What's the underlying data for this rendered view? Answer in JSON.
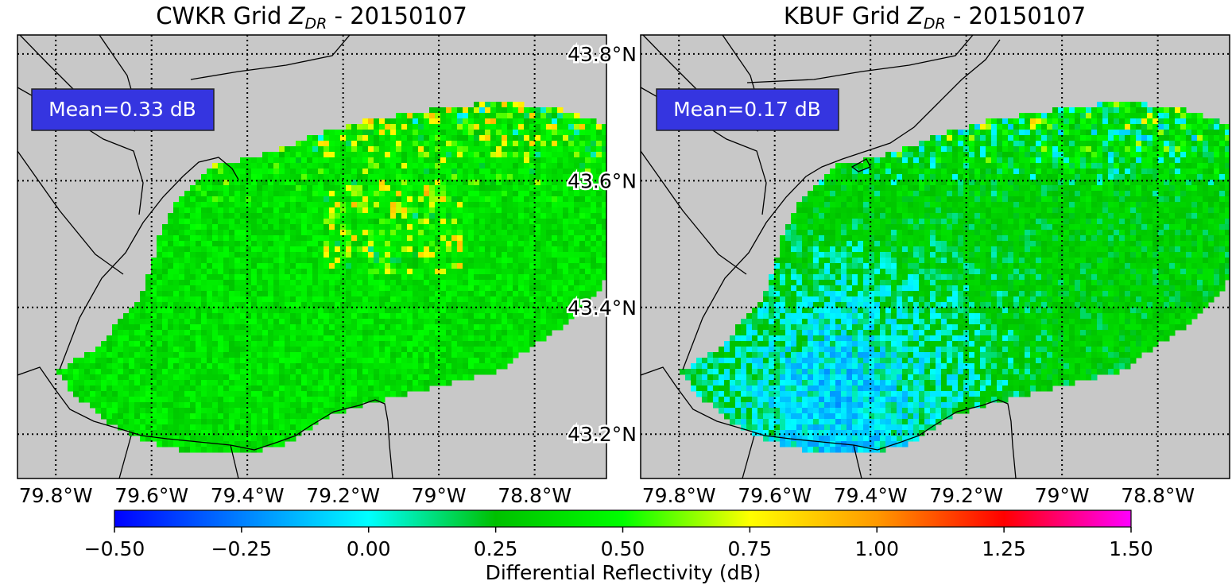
{
  "colors": {
    "land": "#c8c8c8",
    "annotation_box": "#3535e0",
    "annotation_text": "#ffffff",
    "colormap": [
      "#0000ff",
      "#00ffff",
      "#00c000",
      "#00ff00",
      "#ffff00",
      "#ff9900",
      "#ff0000",
      "#ff00ff"
    ]
  },
  "chart_data": [
    {
      "type": "heatmap",
      "title_prefix": "CWKR Grid ",
      "title_var": "Z",
      "title_sub": "DR",
      "title_suffix": " - 20150107",
      "annotation": "Mean=0.33 dB",
      "mean_dB": 0.33,
      "lon_range": [
        -79.88,
        -78.65
      ],
      "lat_range": [
        43.13,
        43.83
      ],
      "xticks": [
        -79.8,
        -79.6,
        -79.4,
        -79.2,
        -79.0,
        -78.8
      ],
      "xtick_labels": [
        "79.8°W",
        "79.6°W",
        "79.4°W",
        "79.2°W",
        "79°W",
        "78.8°W"
      ],
      "yticks": [
        43.8,
        43.6,
        43.4,
        43.2
      ],
      "ytick_labels": [
        "43.8°N",
        "43.6°N",
        "43.4°N",
        "43.2°N"
      ],
      "grid": "dotted"
    },
    {
      "type": "heatmap",
      "title_prefix": "KBUF Grid ",
      "title_var": "Z",
      "title_sub": "DR",
      "title_suffix": " - 20150107",
      "annotation": "Mean=0.17 dB",
      "mean_dB": 0.17,
      "lon_range": [
        -79.88,
        -78.65
      ],
      "lat_range": [
        43.13,
        43.83
      ],
      "xticks": [
        -79.8,
        -79.6,
        -79.4,
        -79.2,
        -79.0,
        -78.8
      ],
      "xtick_labels": [
        "79.8°W",
        "79.6°W",
        "79.4°W",
        "79.2°W",
        "79°W",
        "78.8°W"
      ],
      "yticks": [
        43.8,
        43.6,
        43.4,
        43.2
      ],
      "ytick_labels": [
        "43.8°N",
        "43.6°N",
        "43.4°N",
        "43.2°N"
      ],
      "grid": "dotted"
    }
  ],
  "colorbar": {
    "label": "Differential Reflectivity (dB)",
    "range": [
      -0.5,
      1.5
    ],
    "ticks": [
      -0.5,
      -0.25,
      0.0,
      0.25,
      0.5,
      0.75,
      1.0,
      1.25,
      1.5
    ],
    "tick_labels": [
      "−0.50",
      "−0.25",
      "0.00",
      "0.25",
      "0.50",
      "0.75",
      "1.00",
      "1.25",
      "1.50"
    ]
  }
}
